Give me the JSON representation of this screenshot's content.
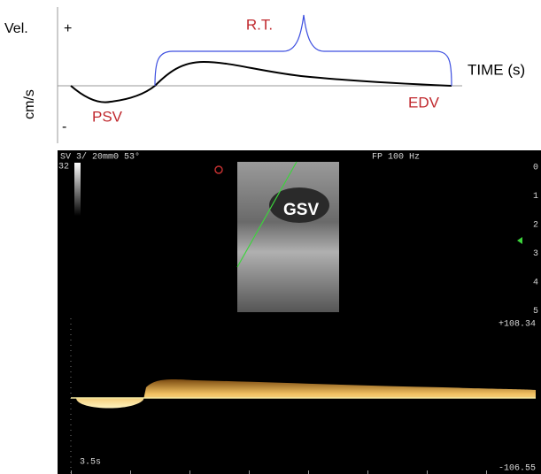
{
  "diagram": {
    "y_label": "Vel.",
    "plus": "+",
    "minus": "-",
    "unit": "cm/s",
    "brace_label": "R.T.",
    "x_label": "TIME (s)",
    "psv_label": "PSV",
    "edv_label": "EDV"
  },
  "ultrasound": {
    "header_left": "SV  3/ 20mmΘ  53°",
    "header_right": "FP  100 Hz",
    "gain": "32",
    "vessel_label": "GSV",
    "depth_ticks": [
      "0",
      "1",
      "2",
      "3",
      "4",
      "5"
    ],
    "scale_top": "+108.34",
    "scale_bottom": "-106.55",
    "sweep": "3.5s"
  }
}
